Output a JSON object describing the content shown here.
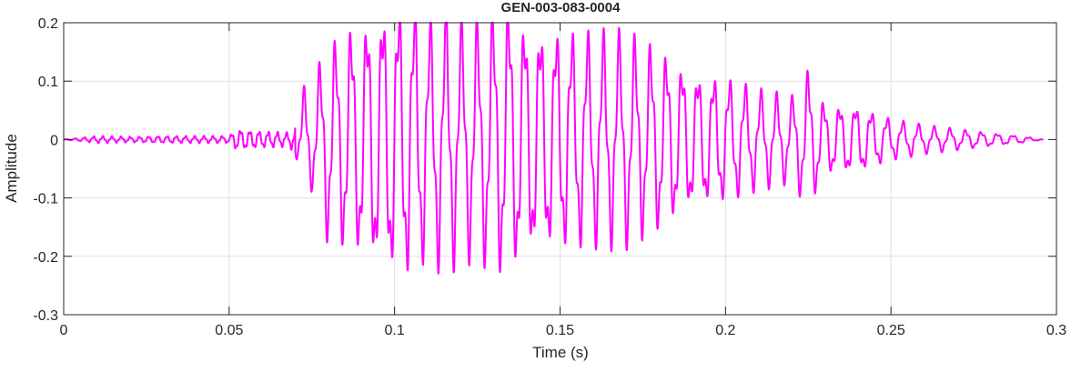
{
  "chart_data": {
    "type": "line",
    "title": "GEN-003-083-0004",
    "xlabel": "Time (s)",
    "ylabel": "Amplitude",
    "xlim": [
      0,
      0.3
    ],
    "ylim": [
      -0.3,
      0.2
    ],
    "xticks": [
      0,
      0.05,
      0.1,
      0.15,
      0.2,
      0.25,
      0.3
    ],
    "xtick_labels": [
      "0",
      "0.05",
      "0.1",
      "0.15",
      "0.2",
      "0.25",
      "0.3"
    ],
    "yticks": [
      -0.3,
      -0.2,
      -0.1,
      0,
      0.1,
      0.2
    ],
    "ytick_labels": [
      "-0.3",
      "-0.2",
      "-0.1",
      "0",
      "0.1",
      "0.2"
    ],
    "grid": true,
    "line_color": "#ff00ff",
    "series": [
      {
        "x": [
          0,
          0.01,
          0.02,
          0.03,
          0.04,
          0.05,
          0.052,
          0.06,
          0.068,
          0.07,
          0.073,
          0.075,
          0.08,
          0.082,
          0.085,
          0.09,
          0.095,
          0.1,
          0.105,
          0.11,
          0.115,
          0.12,
          0.125,
          0.13,
          0.134,
          0.14,
          0.15,
          0.16,
          0.17,
          0.18,
          0.19,
          0.2,
          0.21,
          0.22,
          0.225,
          0.23,
          0.24,
          0.25,
          0.26,
          0.27,
          0.28,
          0.29,
          0.296
        ],
        "y": [
          0.0,
          0.005,
          0.004,
          0.005,
          0.005,
          0.005,
          0.015,
          0.012,
          0.01,
          0.02,
          0.08,
          -0.07,
          0.15,
          -0.14,
          0.16,
          -0.17,
          0.19,
          0.2,
          0.2,
          -0.17,
          0.19,
          -0.17,
          0.17,
          -0.19,
          -0.2,
          0.17,
          0.16,
          0.15,
          -0.15,
          0.13,
          0.1,
          0.09,
          0.07,
          0.06,
          -0.1,
          0.05,
          0.05,
          0.03,
          0.02,
          0.015,
          0.01,
          0.005,
          0.0
        ]
      }
    ]
  }
}
